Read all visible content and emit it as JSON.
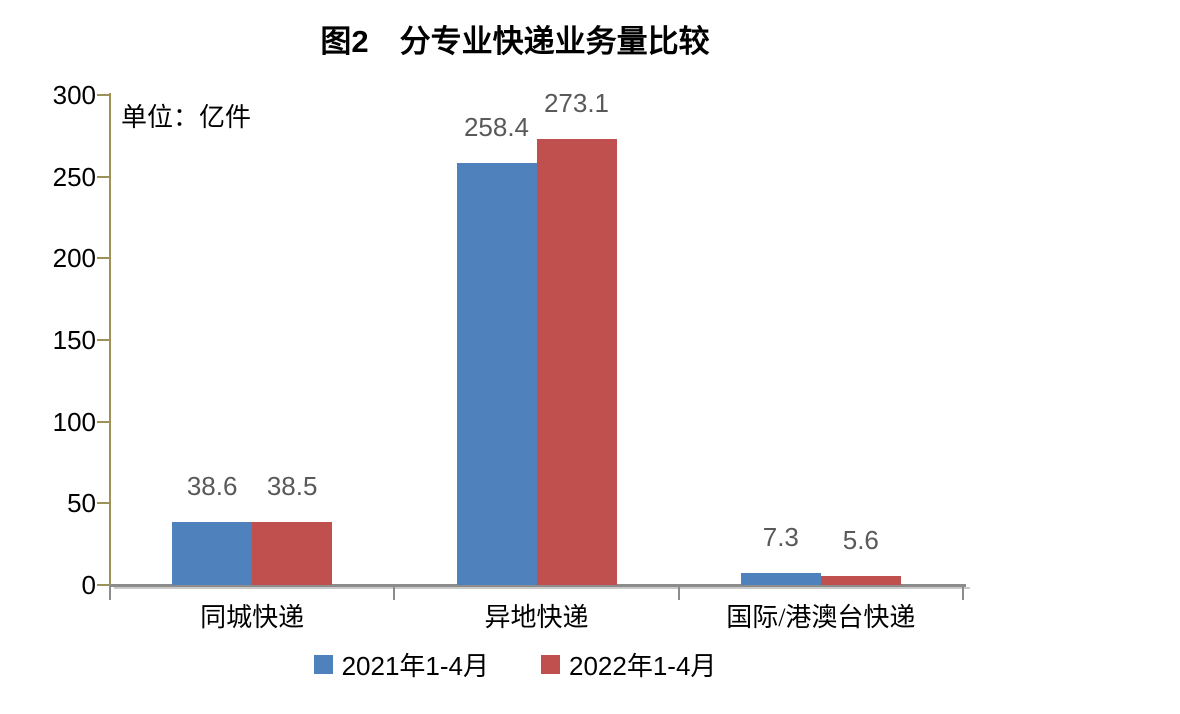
{
  "chart_data": {
    "type": "bar",
    "title": "图2　分专业快递业务量比较",
    "unit_label": "单位：亿件",
    "categories": [
      "同城快递",
      "异地快递",
      "国际/港澳台快递"
    ],
    "series": [
      {
        "name": "2021年1-4月",
        "color": "#4F81BD",
        "values": [
          38.6,
          258.4,
          7.3
        ]
      },
      {
        "name": "2022年1-4月",
        "color": "#C0504D",
        "values": [
          38.5,
          273.1,
          5.6
        ]
      }
    ],
    "xlabel": "",
    "ylabel": "",
    "ylim": [
      0,
      300
    ],
    "yticks": [
      0,
      50,
      100,
      150,
      200,
      250,
      300
    ],
    "grid": false,
    "legend_position": "bottom",
    "colors": {
      "y_axis": "#9C9159",
      "x_axis": "#8C8C8C",
      "x_axis_shadow": "#CACACA",
      "data_label": "#595959"
    }
  }
}
